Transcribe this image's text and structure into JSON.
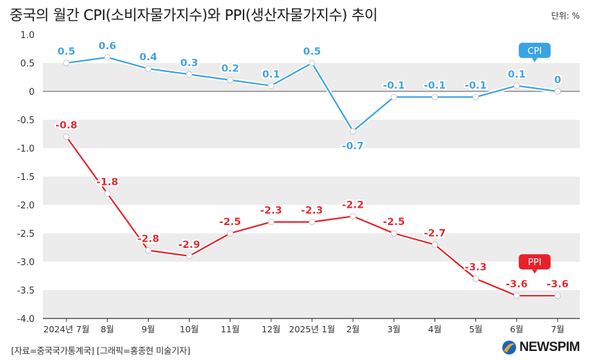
{
  "header": {
    "title": "중국의 월간 CPI(소비자물가지수)와 PPI(생산자물가지수) 추이",
    "unit": "단위: %"
  },
  "footer": {
    "source": "[자료=중국국가통계국] [그래픽=홍종현 미술기자]",
    "brand": "NEWSPIM"
  },
  "colors": {
    "cpi": "#3aa3e3",
    "ppi": "#e8202a",
    "band": "#ececec",
    "axis": "#333333"
  },
  "chart_data": {
    "type": "line",
    "title": "중국의 월간 CPI(소비자물가지수)와 PPI(생산자물가지수) 추이",
    "ylim": [
      -4.0,
      1.0
    ],
    "yticks": [
      "1.0",
      "0.5",
      "0",
      "-0.5",
      "-1.0",
      "-1.5",
      "-2.0",
      "-2.5",
      "-3.0",
      "-3.5",
      "-4.0"
    ],
    "categories": [
      "2024년 7월",
      "8월",
      "9월",
      "10월",
      "11월",
      "12월",
      "2025년 1월",
      "2월",
      "3월",
      "4월",
      "5월",
      "6월",
      "7월"
    ],
    "series": [
      {
        "name": "CPI",
        "values": [
          0.5,
          0.6,
          0.4,
          0.3,
          0.2,
          0.1,
          0.5,
          -0.7,
          -0.1,
          -0.1,
          -0.1,
          0.1,
          0
        ],
        "labels": [
          "0.5",
          "0.6",
          "0.4",
          "0.3",
          "0.2",
          "0.1",
          "0.5",
          "-0.7",
          "-0.1",
          "-0.1",
          "-0.1",
          "0.1",
          "0"
        ]
      },
      {
        "name": "PPI",
        "values": [
          -0.8,
          -1.8,
          -2.8,
          -2.9,
          -2.5,
          -2.3,
          -2.3,
          -2.2,
          -2.5,
          -2.7,
          -3.3,
          -3.6,
          -3.6
        ],
        "labels": [
          "-0.8",
          "-1.8",
          "-2.8",
          "-2.9",
          "-2.5",
          "-2.3",
          "-2.3",
          "-2.2",
          "-2.5",
          "-2.7",
          "-3.3",
          "-3.6",
          "-3.6"
        ]
      }
    ],
    "grid": "alternating-bands",
    "legend": "series-end callouts"
  }
}
